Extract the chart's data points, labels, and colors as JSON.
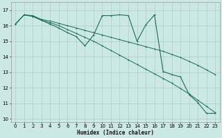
{
  "xlabel": "Humidex (Indice chaleur)",
  "bg_color": "#cce8e4",
  "grid_color": "#aaceca",
  "line_color": "#1a6b5a",
  "xlim": [
    -0.5,
    23.5
  ],
  "ylim": [
    9.8,
    17.5
  ],
  "yticks": [
    10,
    11,
    12,
    13,
    14,
    15,
    16,
    17
  ],
  "xticks": [
    0,
    1,
    2,
    3,
    4,
    5,
    6,
    7,
    8,
    9,
    10,
    11,
    12,
    13,
    14,
    15,
    16,
    17,
    18,
    19,
    20,
    21,
    22,
    23
  ],
  "series_linear1_x": [
    0,
    1,
    2,
    3,
    4,
    5,
    6,
    7,
    8,
    9,
    10,
    11,
    12,
    13,
    14,
    15,
    16,
    17,
    18,
    19,
    20,
    21,
    22,
    23
  ],
  "series_linear1_y": [
    16.1,
    16.7,
    16.65,
    16.4,
    16.3,
    16.15,
    16.0,
    15.85,
    15.7,
    15.55,
    15.4,
    15.25,
    15.1,
    14.95,
    14.8,
    14.65,
    14.5,
    14.35,
    14.15,
    13.95,
    13.7,
    13.45,
    13.15,
    12.85
  ],
  "series_linear2_x": [
    0,
    1,
    2,
    3,
    4,
    5,
    6,
    7,
    8,
    9,
    10,
    11,
    12,
    13,
    14,
    15,
    16,
    17,
    18,
    19,
    20,
    21,
    22,
    23
  ],
  "series_linear2_y": [
    16.1,
    16.7,
    16.6,
    16.35,
    16.2,
    16.0,
    15.75,
    15.5,
    15.25,
    15.0,
    14.7,
    14.4,
    14.1,
    13.8,
    13.5,
    13.2,
    12.9,
    12.6,
    12.3,
    11.95,
    11.6,
    11.2,
    10.8,
    10.4
  ],
  "series_wiggly_x": [
    0,
    1,
    2,
    3,
    4,
    5,
    6,
    7,
    8,
    9,
    10,
    11,
    12,
    13,
    14,
    15,
    16,
    17,
    18,
    19,
    20,
    21,
    22,
    23
  ],
  "series_wiggly_y": [
    16.1,
    16.7,
    16.6,
    16.35,
    16.1,
    15.85,
    15.55,
    15.3,
    14.7,
    15.4,
    16.65,
    16.65,
    16.7,
    16.65,
    15.0,
    16.05,
    16.7,
    13.05,
    12.85,
    12.7,
    11.55,
    11.05,
    10.35,
    10.35
  ]
}
